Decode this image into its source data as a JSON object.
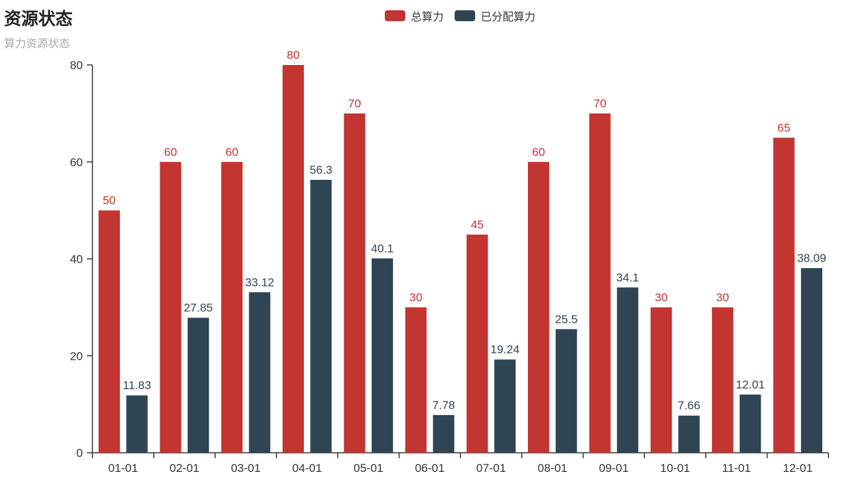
{
  "header": {
    "title": "资源状态",
    "subtitle": "算力资源状态"
  },
  "legend": {
    "items": [
      {
        "label": "总算力",
        "color": "#c23531"
      },
      {
        "label": "已分配算力",
        "color": "#2f4554"
      }
    ]
  },
  "colors": {
    "total_series": "#c23531",
    "allocated_series": "#2f4554",
    "axis": "#333333",
    "title": "#222222",
    "subtitle": "#aaaaaa"
  },
  "chart_data": {
    "type": "bar",
    "title": "资源状态",
    "subtitle": "算力资源状态",
    "categories": [
      "01-01",
      "02-01",
      "03-01",
      "04-01",
      "05-01",
      "06-01",
      "07-01",
      "08-01",
      "09-01",
      "10-01",
      "11-01",
      "12-01"
    ],
    "series": [
      {
        "name": "总算力",
        "color": "#c23531",
        "values": [
          50,
          60,
          60,
          80,
          70,
          30,
          45,
          60,
          70,
          30,
          30,
          65
        ]
      },
      {
        "name": "已分配算力",
        "color": "#2f4554",
        "values": [
          11.83,
          27.85,
          33.12,
          56.3,
          40.1,
          7.78,
          19.24,
          25.5,
          34.1,
          7.66,
          12.01,
          38.09
        ]
      }
    ],
    "xlabel": "",
    "ylabel": "",
    "ylim": [
      0,
      80
    ],
    "yticks": [
      0,
      20,
      40,
      60,
      80
    ],
    "grid": false,
    "legend_position": "top",
    "bar_value_labels": true
  }
}
